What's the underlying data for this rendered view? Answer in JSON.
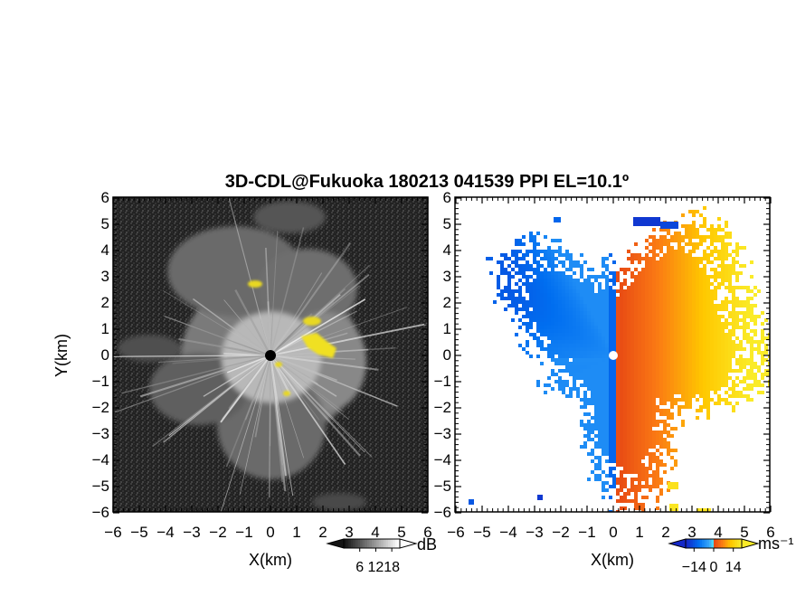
{
  "title": "3D-CDL@Fukuoka 180213 041539 PPI EL=10.1º",
  "chart_data": [
    {
      "type": "heatmap",
      "name": "reflectivity-ppi",
      "xlabel": "X(km)",
      "ylabel": "Y(km)",
      "xlim": [
        -6,
        6
      ],
      "ylim": [
        -6,
        6
      ],
      "xticks": [
        "−6",
        "−5",
        "−4",
        "−3",
        "−2",
        "−1",
        "0",
        "1",
        "2",
        "3",
        "4",
        "5",
        "6"
      ],
      "yticks": [
        "6",
        "5",
        "4",
        "3",
        "2",
        "1",
        "0",
        "−1",
        "−2",
        "−3",
        "−4",
        "−5",
        "−6"
      ],
      "colorbar": {
        "unit": "dB",
        "ticks": [
          6,
          12,
          18
        ],
        "tick_labels": [
          "6",
          "12",
          "18"
        ],
        "range": [
          0,
          21
        ]
      },
      "features": {
        "radar_center": [
          0,
          0
        ],
        "high_echo_patches": [
          {
            "x": 2.0,
            "y": 0.5
          },
          {
            "x": 1.3,
            "y": 1.3
          },
          {
            "x": -0.6,
            "y": 2.8
          },
          {
            "x": 0.6,
            "y": -1.4
          }
        ]
      }
    },
    {
      "type": "heatmap",
      "name": "doppler-velocity-ppi",
      "xlabel": "X(km)",
      "ylabel": "",
      "xlim": [
        -6,
        6
      ],
      "ylim": [
        -6,
        6
      ],
      "xticks": [
        "−6",
        "−5",
        "−4",
        "−3",
        "−2",
        "−1",
        "0",
        "1",
        "2",
        "3",
        "4",
        "5",
        "6"
      ],
      "yticks": [
        "6",
        "5",
        "4",
        "3",
        "2",
        "1",
        "0",
        "−1",
        "−2",
        "−3",
        "−4",
        "−5",
        "−6"
      ],
      "colorbar": {
        "unit": "ms⁻¹",
        "ticks": [
          -14,
          0,
          14
        ],
        "tick_labels": [
          "−14",
          "0",
          "14"
        ],
        "range": [
          -20,
          20
        ]
      },
      "features": {
        "approaching_side": "west (negative velocity, blue)",
        "receding_side": "east (positive velocity, red/yellow)"
      }
    }
  ]
}
